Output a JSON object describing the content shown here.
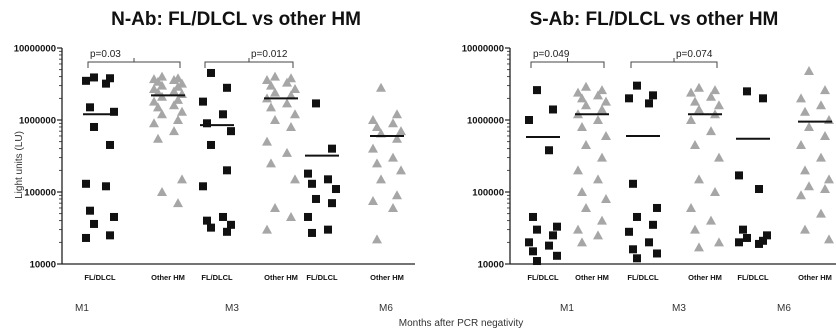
{
  "ylabel": "Light units (LU)",
  "xlabel": "Months after PCR negativity",
  "chart_data": [
    {
      "type": "scatter",
      "title": "N-Ab: FL/DLCL vs other HM",
      "yscale": "log",
      "ylim": [
        10000,
        10000000
      ],
      "yticks": [
        "10000",
        "100000",
        "1000000",
        "10000000"
      ],
      "groups": [
        "M1",
        "M3",
        "M6"
      ],
      "pvalues": [
        {
          "group": "M1",
          "text": "p=0.03"
        },
        {
          "group": "M3",
          "text": "p=0.012"
        }
      ],
      "series": [
        {
          "group": "M1",
          "category": "FL/DLCL",
          "marker": "square",
          "color": "#111111",
          "median": 1200000,
          "values": [
            3900000,
            3800000,
            3500000,
            3200000,
            1500000,
            1300000,
            800000,
            450000,
            130000,
            120000,
            55000,
            45000,
            36000,
            25000,
            23000
          ]
        },
        {
          "group": "M1",
          "category": "Other HM",
          "marker": "triangle",
          "color": "#a6a6a6",
          "median": 2200000,
          "values": [
            4000000,
            3800000,
            3700000,
            3600000,
            3400000,
            3200000,
            3000000,
            2900000,
            2700000,
            2500000,
            2400000,
            2300000,
            2100000,
            1900000,
            1800000,
            1600000,
            1500000,
            1300000,
            1200000,
            1000000,
            900000,
            700000,
            550000,
            150000,
            100000,
            70000
          ]
        },
        {
          "group": "M3",
          "category": "FL/DLCL",
          "marker": "square",
          "color": "#111111",
          "median": 850000,
          "values": [
            4500000,
            2800000,
            1800000,
            1200000,
            900000,
            700000,
            450000,
            200000,
            120000,
            45000,
            40000,
            35000,
            32000,
            28000
          ]
        },
        {
          "group": "M3",
          "category": "Other HM",
          "marker": "triangle",
          "color": "#a6a6a6",
          "median": 2000000,
          "values": [
            4000000,
            3800000,
            3600000,
            3300000,
            3000000,
            2700000,
            2400000,
            2200000,
            2000000,
            1700000,
            1500000,
            1200000,
            1000000,
            800000,
            500000,
            350000,
            250000,
            150000,
            60000,
            45000,
            30000
          ]
        },
        {
          "group": "M6",
          "category": "FL/DLCL",
          "marker": "square",
          "color": "#111111",
          "median": 320000,
          "values": [
            1700000,
            400000,
            180000,
            150000,
            130000,
            110000,
            80000,
            70000,
            45000,
            30000,
            27000
          ]
        },
        {
          "group": "M6",
          "category": "Other HM",
          "marker": "triangle",
          "color": "#a6a6a6",
          "median": 600000,
          "values": [
            2800000,
            1200000,
            1000000,
            900000,
            800000,
            700000,
            650000,
            550000,
            400000,
            300000,
            250000,
            200000,
            150000,
            90000,
            75000,
            60000,
            22000
          ]
        }
      ]
    },
    {
      "type": "scatter",
      "title": "S-Ab: FL/DLCL vs other HM",
      "yscale": "log",
      "ylim": [
        10000,
        10000000
      ],
      "yticks": [
        "10000",
        "100000",
        "1000000",
        "10000000"
      ],
      "groups": [
        "M1",
        "M3",
        "M6"
      ],
      "pvalues": [
        {
          "group": "M1",
          "text": "p=0.049"
        },
        {
          "group": "M3",
          "text": "p=0.074"
        }
      ],
      "series": [
        {
          "group": "M1",
          "category": "FL/DLCL",
          "marker": "square",
          "color": "#111111",
          "median": 580000,
          "values": [
            2600000,
            1400000,
            1000000,
            380000,
            45000,
            33000,
            30000,
            25000,
            20000,
            18000,
            15000,
            13000,
            11000
          ]
        },
        {
          "group": "M1",
          "category": "Other HM",
          "marker": "triangle",
          "color": "#a6a6a6",
          "median": 1200000,
          "values": [
            2900000,
            2600000,
            2400000,
            2200000,
            2000000,
            1800000,
            1600000,
            1400000,
            1200000,
            1000000,
            800000,
            600000,
            450000,
            300000,
            200000,
            150000,
            100000,
            80000,
            60000,
            40000,
            30000,
            25000,
            20000
          ]
        },
        {
          "group": "M3",
          "category": "FL/DLCL",
          "marker": "square",
          "color": "#111111",
          "median": 600000,
          "values": [
            3000000,
            2200000,
            2000000,
            1700000,
            130000,
            60000,
            45000,
            35000,
            28000,
            20000,
            16000,
            14000,
            12000
          ]
        },
        {
          "group": "M3",
          "category": "Other HM",
          "marker": "triangle",
          "color": "#a6a6a6",
          "median": 1200000,
          "values": [
            2800000,
            2600000,
            2400000,
            2100000,
            1800000,
            1600000,
            1400000,
            1200000,
            1000000,
            700000,
            450000,
            300000,
            150000,
            100000,
            60000,
            40000,
            30000,
            20000,
            17000
          ]
        },
        {
          "group": "M6",
          "category": "FL/DLCL",
          "marker": "square",
          "color": "#111111",
          "median": 550000,
          "values": [
            2500000,
            2000000,
            170000,
            110000,
            30000,
            25000,
            23000,
            21000,
            20000,
            19000
          ]
        },
        {
          "group": "M6",
          "category": "Other HM",
          "marker": "triangle",
          "color": "#a6a6a6",
          "median": 950000,
          "values": [
            4800000,
            2600000,
            2000000,
            1600000,
            1300000,
            1000000,
            800000,
            600000,
            450000,
            300000,
            200000,
            150000,
            120000,
            110000,
            90000,
            50000,
            30000,
            22000
          ]
        }
      ]
    }
  ]
}
